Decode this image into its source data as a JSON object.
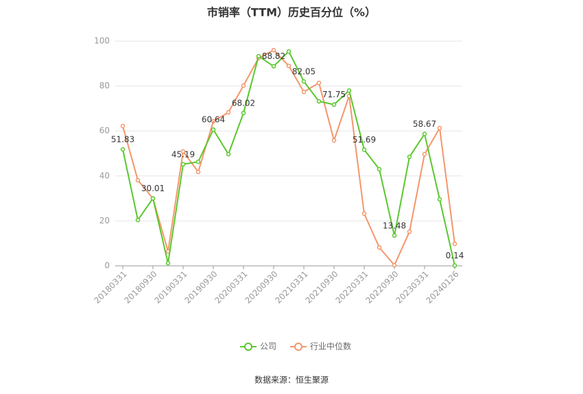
{
  "chart_data": {
    "type": "line",
    "title": "市销率（TTM）历史百分位（%）",
    "source": "数据来源：恒生聚源",
    "categories": [
      "20180331",
      null,
      "20180930",
      null,
      "20190331",
      null,
      "20190930",
      null,
      "20200331",
      null,
      "20200930",
      null,
      "20210331",
      null,
      "20210930",
      null,
      "20220331",
      null,
      "20220930",
      null,
      "20230331",
      null,
      "20240126"
    ],
    "series": [
      {
        "name": "公司",
        "color": "#5ac72c",
        "values": [
          51.83,
          20.4,
          30.01,
          1.2,
          45.19,
          46.3,
          60.64,
          49.7,
          68.02,
          93.3,
          88.82,
          95.4,
          82.05,
          73.2,
          71.75,
          78,
          51.69,
          43,
          13.48,
          48.5,
          58.67,
          29.6,
          0.14
        ],
        "value_labels": [
          "51.83",
          null,
          "30.01",
          null,
          "45.19",
          null,
          "60.64",
          null,
          "68.02",
          null,
          "88.82",
          null,
          "82.05",
          null,
          "71.75",
          null,
          "51.69",
          null,
          "13.48",
          null,
          "58.67",
          null,
          "0.14"
        ]
      },
      {
        "name": "行业中位数",
        "color": "#f4956a",
        "values": [
          62.2,
          38.1,
          30,
          6.4,
          50.9,
          41.8,
          64.3,
          68.3,
          80.2,
          92.5,
          96,
          89,
          77.4,
          81.4,
          55.8,
          75.6,
          23.2,
          8.2,
          0.3,
          15.2,
          49.7,
          61.3,
          9.8
        ]
      }
    ],
    "ylim": [
      0,
      100
    ],
    "yticks": [
      0,
      20,
      40,
      60,
      80,
      100
    ],
    "grid": true,
    "legend": "bottom"
  }
}
